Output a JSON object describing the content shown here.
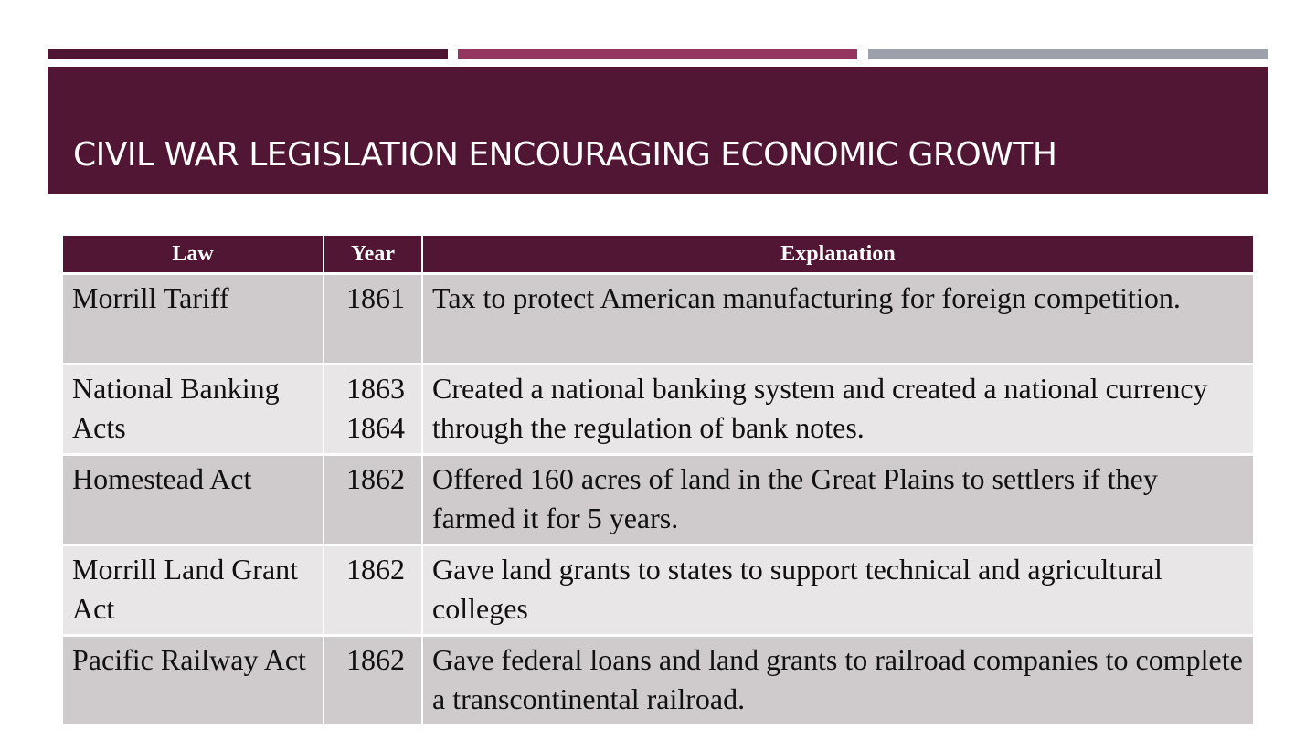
{
  "header": {
    "title": "CIVIL WAR LEGISLATION ENCOURAGING ECONOMIC GROWTH"
  },
  "table": {
    "columns": [
      "Law",
      "Year",
      "Explanation"
    ],
    "rows": [
      [
        "Morrill Tariff",
        [
          "1861"
        ],
        "Tax to protect American manufacturing for foreign competition."
      ],
      [
        "National Banking Acts",
        [
          "1863",
          "1864"
        ],
        "Created a national banking system and created a national currency through the regulation of bank notes."
      ],
      [
        "Homestead Act",
        [
          "1862"
        ],
        "Offered 160 acres of land in the Great Plains to settlers if they farmed it for 5 years."
      ],
      [
        "Morrill Land Grant Act",
        [
          "1862"
        ],
        "Gave land grants to states to support technical and agricultural colleges"
      ],
      [
        "Pacific Railway Act",
        [
          "1862"
        ],
        "Gave federal loans and land grants to railroad companies to complete a transcontinental railroad."
      ]
    ]
  }
}
